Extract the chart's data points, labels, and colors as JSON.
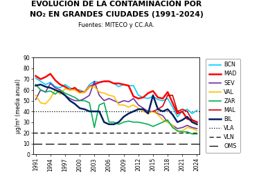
{
  "title_line1": "EVOLUCIÓN DE LA CONTAMINACIÓN POR",
  "title_line2": "NO₂ EN GRANDES CIUDADES (1991-2024)",
  "subtitle": "Fuentes: MITECO y CC.AA.",
  "ylabel": "μg/m³ (media anual)",
  "years": [
    1991,
    1992,
    1993,
    1994,
    1995,
    1996,
    1997,
    1998,
    1999,
    2000,
    2001,
    2002,
    2003,
    2004,
    2005,
    2006,
    2007,
    2008,
    2009,
    2010,
    2011,
    2012,
    2013,
    2014,
    2015,
    2016,
    2017,
    2018,
    2019,
    2020,
    2021,
    2022,
    2023,
    2024
  ],
  "BCN": [
    71,
    68,
    65,
    67,
    63,
    62,
    65,
    62,
    60,
    60,
    58,
    65,
    68,
    67,
    68,
    68,
    66,
    63,
    65,
    64,
    64,
    55,
    53,
    52,
    54,
    51,
    50,
    52,
    44,
    35,
    40,
    42,
    38,
    41
  ],
  "MAD": [
    73,
    70,
    72,
    75,
    69,
    65,
    63,
    60,
    62,
    58,
    58,
    63,
    65,
    67,
    68,
    68,
    66,
    66,
    65,
    64,
    54,
    52,
    53,
    57,
    59,
    53,
    52,
    58,
    48,
    38,
    40,
    33,
    32,
    30
  ],
  "SEV": [
    51,
    60,
    58,
    66,
    62,
    60,
    55,
    52,
    50,
    50,
    52,
    55,
    68,
    55,
    50,
    52,
    50,
    48,
    50,
    49,
    52,
    46,
    43,
    40,
    40,
    38,
    36,
    30,
    27,
    24,
    25,
    27,
    25,
    24
  ],
  "VAL": [
    55,
    48,
    47,
    52,
    60,
    56,
    61,
    60,
    60,
    57,
    58,
    63,
    63,
    58,
    57,
    55,
    54,
    46,
    46,
    44,
    46,
    43,
    40,
    38,
    40,
    37,
    32,
    30,
    27,
    21,
    22,
    25,
    24,
    22
  ],
  "ZAR": [
    65,
    60,
    58,
    59,
    56,
    60,
    57,
    55,
    53,
    50,
    50,
    48,
    25,
    46,
    48,
    30,
    30,
    28,
    30,
    31,
    30,
    30,
    29,
    28,
    26,
    28,
    30,
    32,
    25,
    22,
    21,
    21,
    19,
    19
  ],
  "MAL": [
    null,
    null,
    null,
    null,
    null,
    null,
    null,
    null,
    null,
    null,
    null,
    null,
    null,
    null,
    null,
    null,
    null,
    null,
    null,
    null,
    null,
    null,
    null,
    null,
    40,
    42,
    45,
    55,
    55,
    40,
    42,
    40,
    32,
    30
  ],
  "BIL": [
    64,
    65,
    63,
    62,
    60,
    58,
    55,
    50,
    47,
    43,
    42,
    40,
    40,
    40,
    30,
    28,
    28,
    30,
    35,
    38,
    40,
    42,
    42,
    38,
    55,
    42,
    40,
    42,
    37,
    30,
    32,
    35,
    30,
    28
  ],
  "VLA": 40,
  "VLN": 20,
  "OMS": 10,
  "colors": {
    "BCN": "#00ccff",
    "MAD": "#ff0000",
    "SEV": "#7030a0",
    "VAL": "#ffc000",
    "ZAR": "#00b050",
    "MAL": "#cc0000",
    "BIL": "#002060"
  },
  "ylim": [
    0,
    90
  ],
  "bg_color": "#ffffff"
}
